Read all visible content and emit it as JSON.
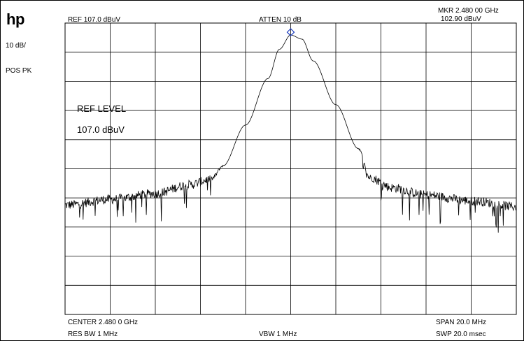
{
  "brand": "hp",
  "top": {
    "ref": "REF  107.0 dBuV",
    "atten": "ATTEN 10 dB",
    "marker_freq": "MKR 2.480 00 GHz",
    "marker_level": "102.90 dBuV"
  },
  "side": {
    "scale": "10 dB/",
    "detector": "POS PK"
  },
  "overlay": {
    "ref_level_label": "REF LEVEL",
    "ref_level_value": "107.0 dBuV"
  },
  "bottom": {
    "center": "CENTER 2.480 0 GHz",
    "span": "SPAN 20.0 MHz",
    "rbw": "RES BW 1 MHz",
    "vbw": "VBW 1 MHz",
    "sweep": "SWP 20.0 msec"
  },
  "chart_data": {
    "type": "line",
    "xlim": [
      2.47,
      2.49
    ],
    "ylim": [
      7.0,
      107.0
    ],
    "x_unit": "GHz",
    "y_unit": "dBuV",
    "grid": true,
    "grid_divisions": [
      10,
      10
    ],
    "x": [
      2.47,
      2.472,
      2.474,
      2.4755,
      2.4765,
      2.477,
      2.478,
      2.479,
      2.4795,
      2.48,
      2.4805,
      2.481,
      2.482,
      2.483,
      2.4835,
      2.4845,
      2.486,
      2.488,
      2.49
    ],
    "y": [
      44.5,
      46.5,
      48.5,
      51.5,
      53.5,
      58.0,
      72.0,
      88.0,
      98.0,
      102.9,
      101.5,
      94.0,
      79.0,
      64.0,
      54.0,
      50.5,
      48.0,
      46.0,
      44.0
    ],
    "marker": {
      "x": 2.48,
      "y": 102.9
    }
  }
}
